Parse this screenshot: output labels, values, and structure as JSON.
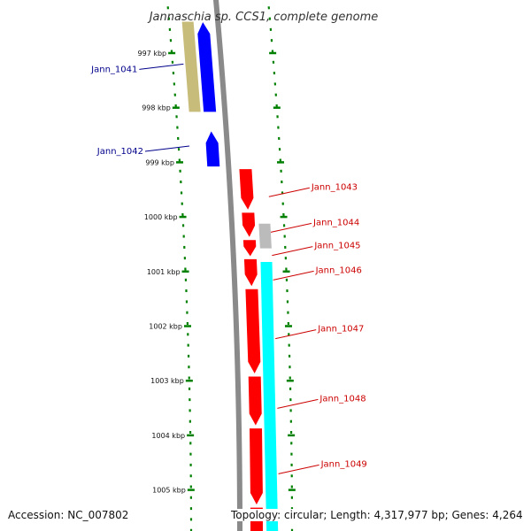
{
  "title": "Jannaschia sp. CCS1, complete genome",
  "footer": {
    "accession": "Accession: NC_007802",
    "info": "Topology: circular; Length: 4,317,977 bp; Genes: 4,264"
  },
  "colors": {
    "reverse_label": "#00008b",
    "forward_label": "#cc0000",
    "tick": "#008000",
    "backbone": "#8a8a8a"
  },
  "ticks": [
    {
      "label": "997 kbp",
      "pos": 997.0
    },
    {
      "label": "998 kbp",
      "pos": 998.0
    },
    {
      "label": "999 kbp",
      "pos": 999.0
    },
    {
      "label": "1000 kbp",
      "pos": 1000.0
    },
    {
      "label": "1001 kbp",
      "pos": 1001.0
    },
    {
      "label": "1002 kbp",
      "pos": 1002.0
    },
    {
      "label": "1003 kbp",
      "pos": 1003.0
    },
    {
      "label": "1004 kbp",
      "pos": 1004.0
    },
    {
      "label": "1005 kbp",
      "pos": 1005.0
    }
  ],
  "genes": [
    {
      "name": "Jann_1041",
      "strand": "-",
      "start": 996.4,
      "end": 998.1,
      "color": "#0000ff"
    },
    {
      "name": "Jann_1042",
      "strand": "-",
      "start": 998.4,
      "end": 999.1,
      "color": "#0000ff"
    },
    {
      "name": "Jann_1043",
      "strand": "+",
      "start": 999.1,
      "end": 999.9,
      "color": "#ff0000"
    },
    {
      "name": "Jann_1044",
      "strand": "+",
      "start": 999.9,
      "end": 1000.4,
      "color": "#ff0000"
    },
    {
      "name": "Jann_1045",
      "strand": "+",
      "start": 1000.4,
      "end": 1000.75,
      "color": "#ff0000"
    },
    {
      "name": "Jann_1046",
      "strand": "+",
      "start": 1000.75,
      "end": 1001.3,
      "color": "#ff0000"
    },
    {
      "name": "Jann_1047",
      "strand": "+",
      "start": 1001.3,
      "end": 1002.9,
      "color": "#ff0000"
    },
    {
      "name": "Jann_1048",
      "strand": "+",
      "start": 1002.9,
      "end": 1003.85,
      "color": "#ff0000"
    },
    {
      "name": "Jann_1049",
      "strand": "+",
      "start": 1003.85,
      "end": 1005.3,
      "color": "#ff0000"
    },
    {
      "name": "",
      "strand": "+",
      "start": 1005.3,
      "end": 1006.0,
      "color": "#ff0000"
    }
  ],
  "features": [
    {
      "track": "outer-reverse",
      "start": 996.4,
      "end": 998.1,
      "color": "#c8bc7a"
    },
    {
      "track": "outer-forward",
      "start": 1000.1,
      "end": 1000.6,
      "color": "#bbbbbb"
    },
    {
      "track": "outer-forward",
      "start": 1000.8,
      "end": 1006.0,
      "color": "#00ffff"
    }
  ]
}
